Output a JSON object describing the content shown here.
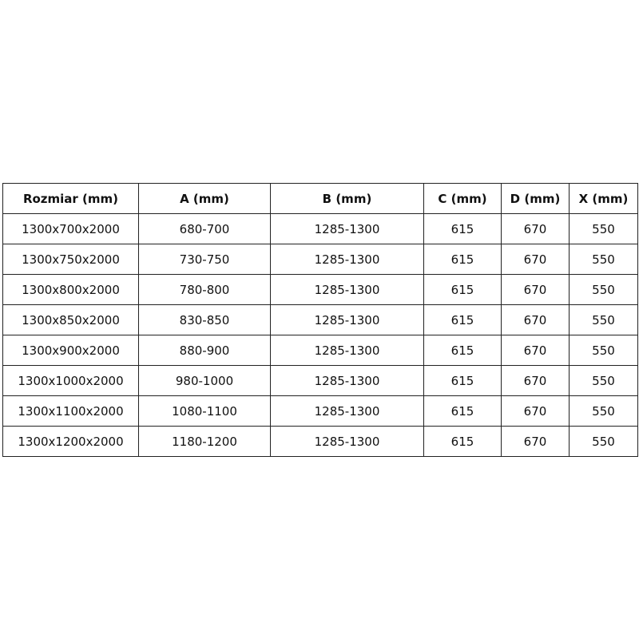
{
  "table": {
    "headers": [
      "Rozmiar (mm)",
      "A (mm)",
      "B (mm)",
      "C (mm)",
      "D (mm)",
      "X (mm)"
    ],
    "rows": [
      [
        "1300x700x2000",
        "680-700",
        "1285-1300",
        "615",
        "670",
        "550"
      ],
      [
        "1300x750x2000",
        "730-750",
        "1285-1300",
        "615",
        "670",
        "550"
      ],
      [
        "1300x800x2000",
        "780-800",
        "1285-1300",
        "615",
        "670",
        "550"
      ],
      [
        "1300x850x2000",
        "830-850",
        "1285-1300",
        "615",
        "670",
        "550"
      ],
      [
        "1300x900x2000",
        "880-900",
        "1285-1300",
        "615",
        "670",
        "550"
      ],
      [
        "1300x1000x2000",
        "980-1000",
        "1285-1300",
        "615",
        "670",
        "550"
      ],
      [
        "1300x1100x2000",
        "1080-1100",
        "1285-1300",
        "615",
        "670",
        "550"
      ],
      [
        "1300x1200x2000",
        "1180-1200",
        "1285-1300",
        "615",
        "670",
        "550"
      ]
    ]
  }
}
